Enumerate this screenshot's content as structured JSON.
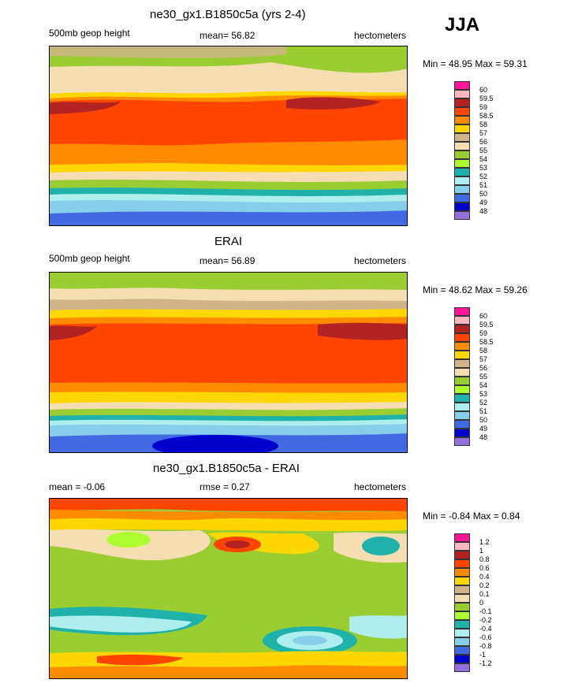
{
  "season": "JJA",
  "panels": [
    {
      "title": "ne30_gx1.B1850c5a (yrs 2-4)",
      "left_label": "500mb geop height",
      "center_label": "mean=  56.82",
      "right_label": "hectometers",
      "minmax": "Min =  48.95 Max =  59.31",
      "levels": [
        "60",
        "59.5",
        "59",
        "58.5",
        "58",
        "57",
        "56",
        "55",
        "54",
        "53",
        "52",
        "51",
        "50",
        "49",
        "48"
      ],
      "colors": [
        "#ff1493",
        "#ffb6c1",
        "#b22222",
        "#ff4500",
        "#ff8c00",
        "#ffd700",
        "#d2b48c",
        "#f5deb3",
        "#9acd32",
        "#adff2f",
        "#20b2aa",
        "#afeeee",
        "#87ceeb",
        "#4169e1",
        "#0000cd",
        "#9370db"
      ]
    },
    {
      "title": "ERAI",
      "left_label": "500mb geop height",
      "center_label": "mean=  56.89",
      "right_label": "hectometers",
      "minmax": "Min =  48.62 Max =  59.26",
      "levels": [
        "60",
        "59.5",
        "59",
        "58.5",
        "58",
        "57",
        "56",
        "55",
        "54",
        "53",
        "52",
        "51",
        "50",
        "49",
        "48"
      ],
      "colors": [
        "#ff1493",
        "#ffb6c1",
        "#b22222",
        "#ff4500",
        "#ff8c00",
        "#ffd700",
        "#d2b48c",
        "#f5deb3",
        "#9acd32",
        "#adff2f",
        "#20b2aa",
        "#afeeee",
        "#87ceeb",
        "#4169e1",
        "#0000cd",
        "#9370db"
      ]
    },
    {
      "title": "ne30_gx1.B1850c5a - ERAI",
      "left_label": "mean =  -0.06",
      "center_label": "rmse =   0.27",
      "right_label": "hectometers",
      "minmax": "Min =  -0.84 Max =   0.84",
      "levels": [
        "1.2",
        "1",
        "0.8",
        "0.6",
        "0.4",
        "0.2",
        "0.1",
        "0",
        "-0.1",
        "-0.2",
        "-0.4",
        "-0.6",
        "-0.8",
        "-1",
        "-1.2"
      ],
      "colors": [
        "#ff1493",
        "#ffb6c1",
        "#b22222",
        "#ff4500",
        "#ff8c00",
        "#ffd700",
        "#d2b48c",
        "#f5deb3",
        "#9acd32",
        "#adff2f",
        "#20b2aa",
        "#afeeee",
        "#87ceeb",
        "#4169e1",
        "#0000cd",
        "#9370db"
      ]
    }
  ]
}
